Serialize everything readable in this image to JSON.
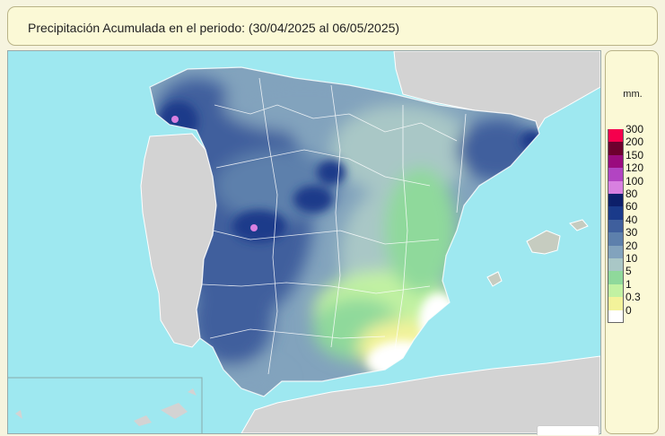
{
  "title": "Precipitación Acumulada en el periodo:  (30/04/2025 al 06/05/2025)",
  "legend": {
    "unit": "mm.",
    "classes": [
      {
        "label": "300",
        "color": "#f5004d"
      },
      {
        "label": "200",
        "color": "#6d002e"
      },
      {
        "label": "150",
        "color": "#9a0b7e"
      },
      {
        "label": "120",
        "color": "#b244c2"
      },
      {
        "label": "100",
        "color": "#d880e0"
      },
      {
        "label": "80",
        "color": "#0d1f6a"
      },
      {
        "label": "60",
        "color": "#1a3a8a"
      },
      {
        "label": "40",
        "color": "#3f5f9d"
      },
      {
        "label": "30",
        "color": "#5d80ac"
      },
      {
        "label": "20",
        "color": "#82a3bd"
      },
      {
        "label": "10",
        "color": "#a9c7c6"
      },
      {
        "label": "5",
        "color": "#8fd99b"
      },
      {
        "label": "1",
        "color": "#c2f2a2"
      },
      {
        "label": "0.3",
        "color": "#f3f39a"
      },
      {
        "label": "0",
        "color": "#ffffff"
      }
    ]
  },
  "map": {
    "sea_color": "#9ee8f0",
    "land_color": "#d3d3d3",
    "border_color": "#ffffff"
  }
}
